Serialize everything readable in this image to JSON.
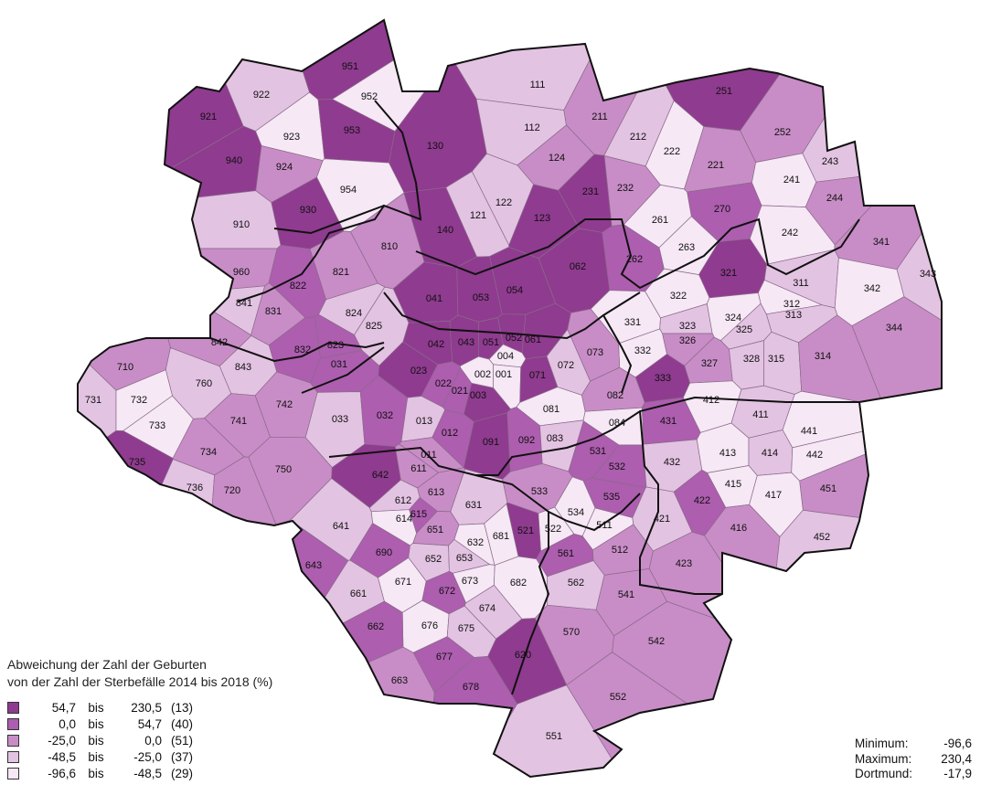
{
  "colors": {
    "c1": "#8f3b8f",
    "c2": "#ad5eaf",
    "c3": "#c88dc6",
    "c4": "#e3c3e2",
    "c5": "#f6e8f5",
    "border_thin": "#8a6a8a",
    "border_thick": "#111111"
  },
  "legend": {
    "title_line1": "Abweichung der Zahl der Geburten",
    "title_line2": "von der Zahl der Sterbefälle 2014 bis 2018 (%)",
    "classes": [
      {
        "from": "54,7",
        "bis": "bis",
        "to": "230,5",
        "count": "(13)",
        "color": "#8f3b8f"
      },
      {
        "from": "0,0",
        "bis": "bis",
        "to": "54,7",
        "count": "(40)",
        "color": "#ad5eaf"
      },
      {
        "from": "-25,0",
        "bis": "bis",
        "to": "0,0",
        "count": "(51)",
        "color": "#c88dc6"
      },
      {
        "from": "-48,5",
        "bis": "bis",
        "to": "-25,0",
        "count": "(37)",
        "color": "#e3c3e2"
      },
      {
        "from": "-96,6",
        "bis": "bis",
        "to": "-48,5",
        "count": "(29)",
        "color": "#f6e8f5"
      }
    ]
  },
  "stats": {
    "min_label": "Minimum:",
    "min_value": "-96,6",
    "max_label": "Maximum:",
    "max_value": "230,4",
    "city_label": "Dortmund:",
    "city_value": "-17,9"
  },
  "districts": [
    {
      "id": "951",
      "c": 1
    },
    {
      "id": "922",
      "c": 4
    },
    {
      "id": "952",
      "c": 5
    },
    {
      "id": "921",
      "c": 1
    },
    {
      "id": "923",
      "c": 5
    },
    {
      "id": "953",
      "c": 1
    },
    {
      "id": "940",
      "c": 1
    },
    {
      "id": "924",
      "c": 3
    },
    {
      "id": "954",
      "c": 5
    },
    {
      "id": "910",
      "c": 4
    },
    {
      "id": "930",
      "c": 1
    },
    {
      "id": "960",
      "c": 3
    },
    {
      "id": "111",
      "c": 4
    },
    {
      "id": "130",
      "c": 1
    },
    {
      "id": "112",
      "c": 4
    },
    {
      "id": "124",
      "c": 3
    },
    {
      "id": "122",
      "c": 4
    },
    {
      "id": "121",
      "c": 4
    },
    {
      "id": "140",
      "c": 1
    },
    {
      "id": "123",
      "c": 1
    },
    {
      "id": "211",
      "c": 3
    },
    {
      "id": "212",
      "c": 4
    },
    {
      "id": "222",
      "c": 5
    },
    {
      "id": "251",
      "c": 1
    },
    {
      "id": "252",
      "c": 3
    },
    {
      "id": "221",
      "c": 3
    },
    {
      "id": "243",
      "c": 4
    },
    {
      "id": "241",
      "c": 5
    },
    {
      "id": "244",
      "c": 3
    },
    {
      "id": "231",
      "c": 1
    },
    {
      "id": "232",
      "c": 3
    },
    {
      "id": "270",
      "c": 2
    },
    {
      "id": "261",
      "c": 5
    },
    {
      "id": "263",
      "c": 5
    },
    {
      "id": "242",
      "c": 5
    },
    {
      "id": "262",
      "c": 2
    },
    {
      "id": "062",
      "c": 1
    },
    {
      "id": "341",
      "c": 3
    },
    {
      "id": "321",
      "c": 1
    },
    {
      "id": "343",
      "c": 4
    },
    {
      "id": "311",
      "c": 4
    },
    {
      "id": "342",
      "c": 5
    },
    {
      "id": "810",
      "c": 3
    },
    {
      "id": "821",
      "c": 3
    },
    {
      "id": "822",
      "c": 2
    },
    {
      "id": "841",
      "c": 4
    },
    {
      "id": "831",
      "c": 3
    },
    {
      "id": "824",
      "c": 4
    },
    {
      "id": "825",
      "c": 4
    },
    {
      "id": "842",
      "c": 3
    },
    {
      "id": "832",
      "c": 2
    },
    {
      "id": "823",
      "c": 2
    },
    {
      "id": "843",
      "c": 4
    },
    {
      "id": "041",
      "c": 1
    },
    {
      "id": "053",
      "c": 1
    },
    {
      "id": "054",
      "c": 1
    },
    {
      "id": "322",
      "c": 5
    },
    {
      "id": "312",
      "c": 5
    },
    {
      "id": "313",
      "c": 4
    },
    {
      "id": "331",
      "c": 5
    },
    {
      "id": "323",
      "c": 4
    },
    {
      "id": "324",
      "c": 5
    },
    {
      "id": "325",
      "c": 4
    },
    {
      "id": "344",
      "c": 3
    },
    {
      "id": "042",
      "c": 1
    },
    {
      "id": "043",
      "c": 1
    },
    {
      "id": "051",
      "c": 1
    },
    {
      "id": "052",
      "c": 1
    },
    {
      "id": "061",
      "c": 1
    },
    {
      "id": "326",
      "c": 3
    },
    {
      "id": "332",
      "c": 5
    },
    {
      "id": "073",
      "c": 3
    },
    {
      "id": "004",
      "c": 5
    },
    {
      "id": "072",
      "c": 4
    },
    {
      "id": "327",
      "c": 3
    },
    {
      "id": "328",
      "c": 4
    },
    {
      "id": "315",
      "c": 4
    },
    {
      "id": "314",
      "c": 3
    },
    {
      "id": "710",
      "c": 3
    },
    {
      "id": "760",
      "c": 4
    },
    {
      "id": "031",
      "c": 2
    },
    {
      "id": "023",
      "c": 1
    },
    {
      "id": "002",
      "c": 5
    },
    {
      "id": "001",
      "c": 5
    },
    {
      "id": "071",
      "c": 1
    },
    {
      "id": "022",
      "c": 2
    },
    {
      "id": "021",
      "c": 2
    },
    {
      "id": "333",
      "c": 1
    },
    {
      "id": "731",
      "c": 4
    },
    {
      "id": "732",
      "c": 5
    },
    {
      "id": "742",
      "c": 3
    },
    {
      "id": "003",
      "c": 1
    },
    {
      "id": "082",
      "c": 3
    },
    {
      "id": "412",
      "c": 5
    },
    {
      "id": "081",
      "c": 5
    },
    {
      "id": "411",
      "c": 4
    },
    {
      "id": "733",
      "c": 5
    },
    {
      "id": "741",
      "c": 3
    },
    {
      "id": "033",
      "c": 4
    },
    {
      "id": "032",
      "c": 2
    },
    {
      "id": "013",
      "c": 4
    },
    {
      "id": "084",
      "c": 5
    },
    {
      "id": "441",
      "c": 5
    },
    {
      "id": "431",
      "c": 2
    },
    {
      "id": "012",
      "c": 2
    },
    {
      "id": "091",
      "c": 1
    },
    {
      "id": "092",
      "c": 2
    },
    {
      "id": "083",
      "c": 4
    },
    {
      "id": "734",
      "c": 3
    },
    {
      "id": "011",
      "c": 3
    },
    {
      "id": "531",
      "c": 2
    },
    {
      "id": "413",
      "c": 5
    },
    {
      "id": "414",
      "c": 4
    },
    {
      "id": "442",
      "c": 5
    },
    {
      "id": "735",
      "c": 1
    },
    {
      "id": "750",
      "c": 3
    },
    {
      "id": "642",
      "c": 1
    },
    {
      "id": "611",
      "c": 3
    },
    {
      "id": "532",
      "c": 2
    },
    {
      "id": "432",
      "c": 4
    },
    {
      "id": "736",
      "c": 4
    },
    {
      "id": "720",
      "c": 3
    },
    {
      "id": "613",
      "c": 3
    },
    {
      "id": "415",
      "c": 5
    },
    {
      "id": "451",
      "c": 3
    },
    {
      "id": "533",
      "c": 3
    },
    {
      "id": "612",
      "c": 4
    },
    {
      "id": "631",
      "c": 4
    },
    {
      "id": "535",
      "c": 2
    },
    {
      "id": "417",
      "c": 5
    },
    {
      "id": "422",
      "c": 2
    },
    {
      "id": "615",
      "c": 2
    },
    {
      "id": "614",
      "c": 5
    },
    {
      "id": "534",
      "c": 5
    },
    {
      "id": "641",
      "c": 4
    },
    {
      "id": "651",
      "c": 3
    },
    {
      "id": "681",
      "c": 5
    },
    {
      "id": "522",
      "c": 5
    },
    {
      "id": "511",
      "c": 5
    },
    {
      "id": "421",
      "c": 4
    },
    {
      "id": "416",
      "c": 3
    },
    {
      "id": "521",
      "c": 1
    },
    {
      "id": "632",
      "c": 5
    },
    {
      "id": "690",
      "c": 2
    },
    {
      "id": "452",
      "c": 4
    },
    {
      "id": "643",
      "c": 2
    },
    {
      "id": "652",
      "c": 4
    },
    {
      "id": "653",
      "c": 4
    },
    {
      "id": "561",
      "c": 2
    },
    {
      "id": "512",
      "c": 3
    },
    {
      "id": "423",
      "c": 3
    },
    {
      "id": "673",
      "c": 5
    },
    {
      "id": "562",
      "c": 4
    },
    {
      "id": "682",
      "c": 5
    },
    {
      "id": "661",
      "c": 4
    },
    {
      "id": "671",
      "c": 5
    },
    {
      "id": "672",
      "c": 2
    },
    {
      "id": "541",
      "c": 3
    },
    {
      "id": "674",
      "c": 4
    },
    {
      "id": "676",
      "c": 5
    },
    {
      "id": "662",
      "c": 2
    },
    {
      "id": "675",
      "c": 4
    },
    {
      "id": "570",
      "c": 3
    },
    {
      "id": "542",
      "c": 3
    },
    {
      "id": "620",
      "c": 1
    },
    {
      "id": "677",
      "c": 2
    },
    {
      "id": "663",
      "c": 3
    },
    {
      "id": "678",
      "c": 2
    },
    {
      "id": "552",
      "c": 3
    },
    {
      "id": "551",
      "c": 4
    }
  ]
}
